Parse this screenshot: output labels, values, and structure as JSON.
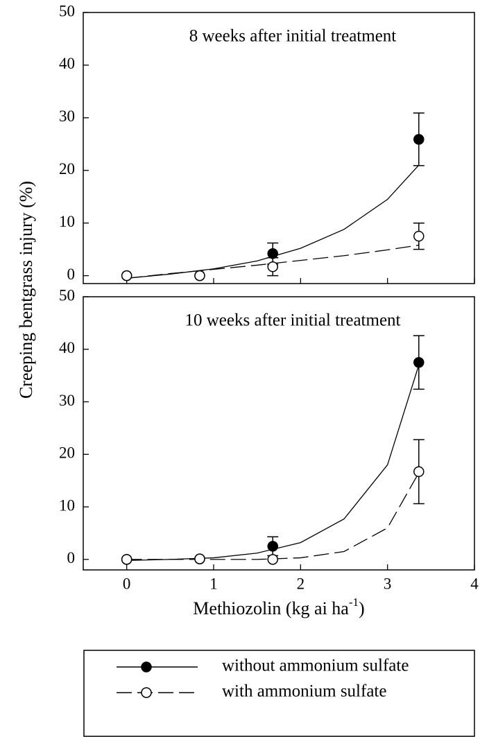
{
  "chart_data": [
    {
      "type": "scatter",
      "title": "8 weeks after initial treatment",
      "y_label": "Creeping bentgrass injury (%)",
      "x": [
        0,
        0.84,
        1.68,
        3.36
      ],
      "fit_x": [
        0,
        0.5,
        1,
        1.5,
        2,
        2.5,
        3,
        3.36
      ],
      "xlim": [
        -0.5,
        4
      ],
      "xticks": [
        0,
        1,
        2,
        3,
        4
      ],
      "ylim": [
        -1.5,
        50
      ],
      "yticks": [
        0,
        10,
        20,
        30,
        40,
        50
      ],
      "series": [
        {
          "name": "without ammonium sulfate",
          "color": "#000000",
          "filled": true,
          "dashed": false,
          "values": [
            0,
            0,
            4.2,
            25.9
          ],
          "errors": [
            null,
            null,
            2,
            5
          ],
          "fit": [
            -0.5,
            0.3,
            1.3,
            2.8,
            5.2,
            8.8,
            14.5,
            21
          ]
        },
        {
          "name": "with ammonium sulfate",
          "color": "#000000",
          "filled": false,
          "dashed": true,
          "values": [
            0,
            0,
            1.7,
            7.5
          ],
          "errors": [
            null,
            null,
            1.7,
            2.5
          ],
          "fit": [
            -0.5,
            0.4,
            1.2,
            2.0,
            2.9,
            3.8,
            4.9,
            5.8
          ]
        }
      ]
    },
    {
      "type": "scatter",
      "title": "10 weeks after initial treatment",
      "x_label": [
        "Methiozolin (kg ai ha",
        "-1",
        ")"
      ],
      "x": [
        0,
        0.84,
        1.68,
        3.36
      ],
      "fit_x": [
        0,
        0.5,
        1,
        1.5,
        2,
        2.5,
        3,
        3.36
      ],
      "xlim": [
        -0.5,
        4
      ],
      "xticks": [
        0,
        1,
        2,
        3,
        4
      ],
      "ylim": [
        -2,
        50
      ],
      "yticks": [
        0,
        10,
        20,
        30,
        40,
        50
      ],
      "series": [
        {
          "name": "without ammonium sulfate",
          "color": "#000000",
          "filled": true,
          "dashed": false,
          "values": [
            0,
            0.1,
            2.5,
            37.5
          ],
          "errors": [
            null,
            null,
            1.8,
            5.1
          ],
          "fit": [
            -0.2,
            0,
            0.3,
            1.2,
            3.2,
            7.7,
            18,
            37
          ]
        },
        {
          "name": "with ammonium sulfate",
          "color": "#000000",
          "filled": false,
          "dashed": true,
          "values": [
            0,
            0.1,
            0,
            16.7
          ],
          "errors": [
            null,
            null,
            null,
            6.1
          ],
          "fit": [
            0,
            0,
            0,
            0,
            0.3,
            1.5,
            6,
            16.5
          ]
        }
      ]
    }
  ]
}
